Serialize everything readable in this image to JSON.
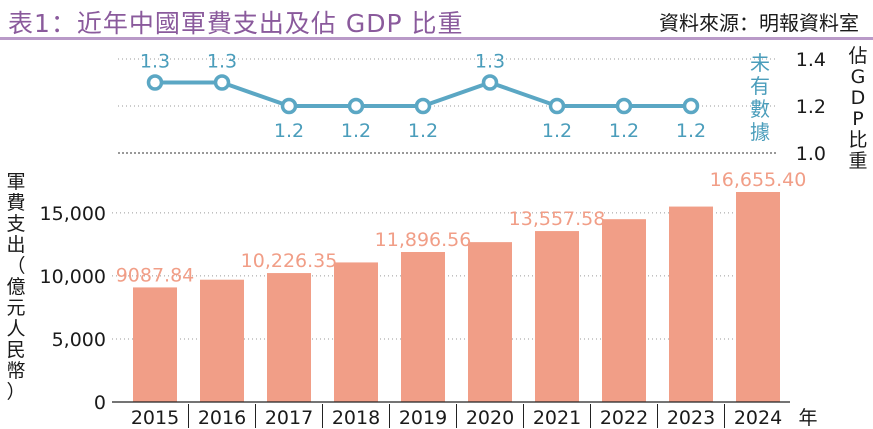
{
  "header": {
    "title": "表1：近年中國軍費支出及佔 GDP 比重",
    "source": "資料來源：明報資料室"
  },
  "colors": {
    "bar": "#f19e87",
    "bar_label": "#f19e87",
    "line": "#5ba7c4",
    "line_label": "#4a9dbb",
    "title": "#8a5a9c",
    "rule": "#b99ac8",
    "grid": "#9a9a9a"
  },
  "no_data_text": "未有數據",
  "chart_data": [
    {
      "type": "bar",
      "categories": [
        "2015",
        "2016",
        "2017",
        "2018",
        "2019",
        "2020",
        "2021",
        "2022",
        "2023",
        "2024"
      ],
      "values": [
        9087.84,
        9700,
        10226.35,
        11070,
        11896.56,
        12680,
        13557.58,
        14500,
        15500,
        16655.4
      ],
      "data_labels": [
        "9087.84",
        "",
        "10,226.35",
        "",
        "11,896.56",
        "",
        "13,557.58",
        "",
        "",
        "16,655.40"
      ],
      "ylabel": "軍費支出（億元人民幣）",
      "xlabel": "年",
      "yticks": [
        "0",
        "5,000",
        "10,000",
        "15,000"
      ],
      "ytick_values": [
        0,
        5000,
        10000,
        15000
      ],
      "ylim": [
        0,
        16655.4
      ],
      "grid": true
    },
    {
      "type": "line",
      "categories": [
        "2015",
        "2016",
        "2017",
        "2018",
        "2019",
        "2020",
        "2021",
        "2022",
        "2023"
      ],
      "values": [
        1.3,
        1.3,
        1.2,
        1.2,
        1.2,
        1.3,
        1.2,
        1.2,
        1.2
      ],
      "data_labels": [
        "1.3",
        "1.3",
        "1.2",
        "1.2",
        "1.2",
        "1.3",
        "1.2",
        "1.2",
        "1.2"
      ],
      "ylabel": "佔GDP比重",
      "yticks": [
        "1.4",
        "1.2",
        "1.0"
      ],
      "ytick_values": [
        1.4,
        1.2,
        1.0
      ],
      "ylim": [
        1.0,
        1.4
      ],
      "grid": true
    }
  ]
}
